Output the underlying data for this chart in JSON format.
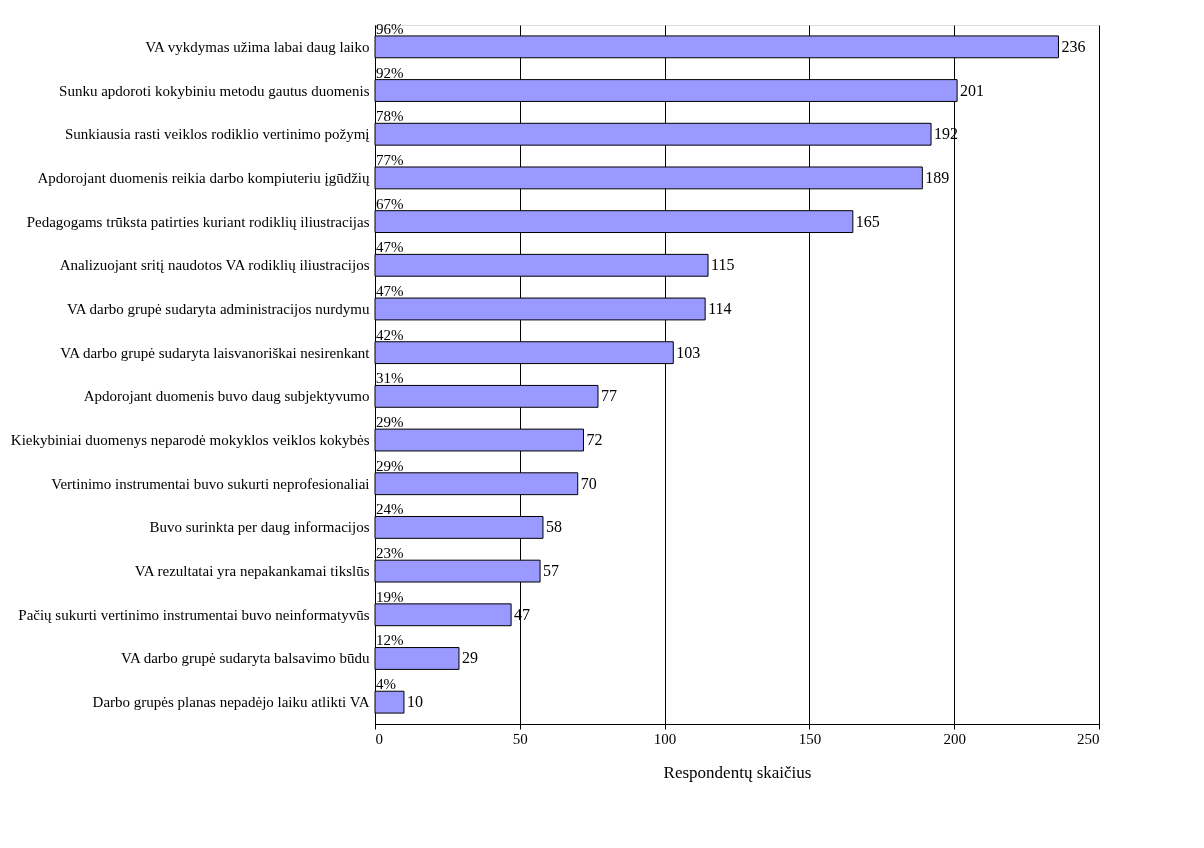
{
  "chart_data": {
    "type": "bar",
    "orientation": "horizontal",
    "xlabel": "Respondentų skaičius",
    "categories": [
      "VA vykdymas užima labai daug laiko",
      "Sunku apdoroti kokybiniu metodu gautus duomenis",
      "Sunkiausia rasti veiklos rodiklio vertinimo požymį",
      "Apdorojant duomenis reikia darbo kompiuteriu įgūdžių",
      "Pedagogams trūksta patirties kuriant rodiklių iliustracijas",
      "Analizuojant sritį naudotos VA rodiklių iliustracijos",
      "VA darbo grupė sudaryta administracijos nurdymu",
      "VA darbo grupė sudaryta laisvanoriškai nesirenkant",
      "Apdorojant duomenis buvo daug subjektyvumo",
      "Kiekybiniai duomenys neparodė mokyklos veiklos kokybės",
      "Vertinimo instrumentai buvo sukurti neprofesionaliai",
      "Buvo surinkta per daug informacijos",
      "VA rezultatai yra nepakankamai tikslūs",
      "Pačių sukurti vertinimo instrumentai buvo neinformatyvūs",
      "VA darbo grupė sudaryta balsavimo būdu",
      "Darbo grupės planas nepadėjo laiku atlikti VA"
    ],
    "values": [
      236,
      201,
      192,
      189,
      165,
      115,
      114,
      103,
      77,
      72,
      70,
      58,
      57,
      47,
      29,
      10
    ],
    "color": "#9999ff",
    "data_labels": true,
    "xlim": [
      0,
      250
    ],
    "xticks": [
      0,
      50,
      100,
      150,
      200,
      250
    ],
    "grid": "x",
    "annotations": [
      "96%",
      "92%",
      "78%",
      "77%",
      "67%",
      "47%",
      "47%",
      "42%",
      "31%",
      "29%",
      "29%",
      "24%",
      "23%",
      "19%",
      "12%",
      "4%"
    ]
  }
}
